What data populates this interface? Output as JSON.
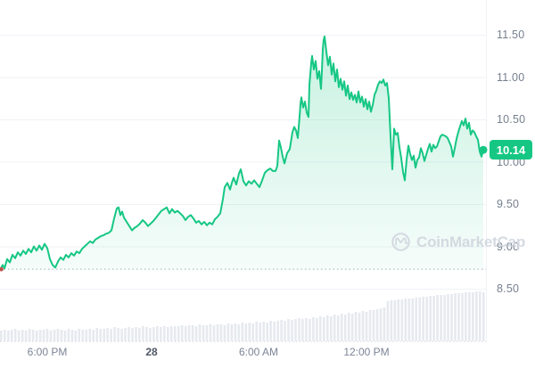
{
  "watermark": {
    "text": "CoinMarketCap"
  },
  "current_price": {
    "label": "10.14"
  },
  "colors": {
    "accent_green": "#16c784",
    "badge_text": "#ffffff",
    "grid": "#f0f2f6",
    "axis_label": "#7c8496",
    "axis_label_emphasis": "#4f5665",
    "volume_bar": "#e6e9ef",
    "watermark": "#d2d7e0",
    "baseline_dotted": "#b9c0cc",
    "start_dot": "#c0544e"
  },
  "chart_data": {
    "type": "line",
    "title": "",
    "legend": [],
    "grid": true,
    "y_axis_side": "right",
    "y_ticks": [
      11.5,
      11.0,
      10.5,
      10.0,
      9.5,
      9.0,
      8.5
    ],
    "y_range": [
      8.3,
      11.75
    ],
    "x_ticks": [
      {
        "label": "6:00 PM",
        "x": 53,
        "emphasis": false
      },
      {
        "label": "28",
        "x": 170,
        "emphasis": true
      },
      {
        "label": "6:00 AM",
        "x": 290,
        "emphasis": false
      },
      {
        "label": "12:00 PM",
        "x": 411,
        "emphasis": false
      }
    ],
    "current_price": 10.14,
    "open_price": 8.73,
    "series": [
      {
        "name": "price",
        "points": [
          [
            0,
            8.72
          ],
          [
            3,
            8.78
          ],
          [
            5,
            8.74
          ],
          [
            8,
            8.85
          ],
          [
            11,
            8.81
          ],
          [
            14,
            8.9
          ],
          [
            17,
            8.86
          ],
          [
            20,
            8.93
          ],
          [
            23,
            8.89
          ],
          [
            26,
            8.95
          ],
          [
            29,
            8.91
          ],
          [
            32,
            8.97
          ],
          [
            35,
            8.93
          ],
          [
            38,
            9.0
          ],
          [
            41,
            8.95
          ],
          [
            44,
            9.01
          ],
          [
            47,
            8.96
          ],
          [
            50,
            9.03
          ],
          [
            53,
            8.98
          ],
          [
            56,
            8.85
          ],
          [
            59,
            8.78
          ],
          [
            62,
            8.75
          ],
          [
            65,
            8.82
          ],
          [
            68,
            8.87
          ],
          [
            71,
            8.84
          ],
          [
            74,
            8.9
          ],
          [
            77,
            8.87
          ],
          [
            80,
            8.92
          ],
          [
            83,
            8.89
          ],
          [
            86,
            8.94
          ],
          [
            89,
            8.92
          ],
          [
            92,
            8.97
          ],
          [
            95,
            9.0
          ],
          [
            98,
            9.03
          ],
          [
            101,
            9.06
          ],
          [
            104,
            9.04
          ],
          [
            107,
            9.08
          ],
          [
            110,
            9.1
          ],
          [
            113,
            9.12
          ],
          [
            116,
            9.13
          ],
          [
            119,
            9.15
          ],
          [
            122,
            9.16
          ],
          [
            125,
            9.19
          ],
          [
            128,
            9.33
          ],
          [
            131,
            9.45
          ],
          [
            133,
            9.46
          ],
          [
            135,
            9.37
          ],
          [
            137,
            9.41
          ],
          [
            139,
            9.34
          ],
          [
            142,
            9.29
          ],
          [
            145,
            9.24
          ],
          [
            148,
            9.19
          ],
          [
            151,
            9.22
          ],
          [
            154,
            9.24
          ],
          [
            157,
            9.27
          ],
          [
            160,
            9.31
          ],
          [
            163,
            9.28
          ],
          [
            166,
            9.24
          ],
          [
            169,
            9.27
          ],
          [
            172,
            9.3
          ],
          [
            175,
            9.34
          ],
          [
            178,
            9.38
          ],
          [
            181,
            9.42
          ],
          [
            184,
            9.44
          ],
          [
            187,
            9.46
          ],
          [
            190,
            9.39
          ],
          [
            193,
            9.44
          ],
          [
            196,
            9.4
          ],
          [
            199,
            9.42
          ],
          [
            202,
            9.39
          ],
          [
            205,
            9.36
          ],
          [
            208,
            9.31
          ],
          [
            211,
            9.35
          ],
          [
            214,
            9.37
          ],
          [
            217,
            9.33
          ],
          [
            220,
            9.28
          ],
          [
            223,
            9.3
          ],
          [
            226,
            9.26
          ],
          [
            229,
            9.29
          ],
          [
            232,
            9.25
          ],
          [
            235,
            9.28
          ],
          [
            238,
            9.26
          ],
          [
            241,
            9.32
          ],
          [
            244,
            9.35
          ],
          [
            247,
            9.39
          ],
          [
            250,
            9.56
          ],
          [
            252,
            9.7
          ],
          [
            255,
            9.75
          ],
          [
            258,
            9.67
          ],
          [
            260,
            9.75
          ],
          [
            262,
            9.81
          ],
          [
            265,
            9.73
          ],
          [
            268,
            9.86
          ],
          [
            270,
            9.91
          ],
          [
            273,
            9.77
          ],
          [
            276,
            9.72
          ],
          [
            279,
            9.77
          ],
          [
            282,
            9.74
          ],
          [
            285,
            9.78
          ],
          [
            288,
            9.74
          ],
          [
            291,
            9.7
          ],
          [
            294,
            9.78
          ],
          [
            297,
            9.87
          ],
          [
            300,
            9.9
          ],
          [
            303,
            9.92
          ],
          [
            306,
            9.89
          ],
          [
            309,
            9.89
          ],
          [
            311,
            9.95
          ],
          [
            313,
            10.25
          ],
          [
            315,
            10.17
          ],
          [
            317,
            10.06
          ],
          [
            319,
            9.98
          ],
          [
            322,
            10.1
          ],
          [
            325,
            10.15
          ],
          [
            328,
            10.35
          ],
          [
            330,
            10.41
          ],
          [
            332,
            10.37
          ],
          [
            334,
            10.28
          ],
          [
            336,
            10.54
          ],
          [
            337,
            10.68
          ],
          [
            338,
            10.76
          ],
          [
            340,
            10.64
          ],
          [
            342,
            10.71
          ],
          [
            344,
            10.58
          ],
          [
            346,
            10.53
          ],
          [
            347,
            10.91
          ],
          [
            349,
            11.16
          ],
          [
            350,
            11.25
          ],
          [
            352,
            11.09
          ],
          [
            354,
            11.19
          ],
          [
            356,
            10.98
          ],
          [
            358,
            11.07
          ],
          [
            360,
            10.86
          ],
          [
            361,
            11.07
          ],
          [
            362,
            11.33
          ],
          [
            363,
            11.44
          ],
          [
            364,
            11.48
          ],
          [
            366,
            11.3
          ],
          [
            368,
            11.14
          ],
          [
            370,
            11.24
          ],
          [
            372,
            11.03
          ],
          [
            374,
            11.16
          ],
          [
            376,
            10.95
          ],
          [
            378,
            11.09
          ],
          [
            380,
            10.88
          ],
          [
            382,
            10.98
          ],
          [
            384,
            10.85
          ],
          [
            386,
            10.95
          ],
          [
            388,
            10.78
          ],
          [
            390,
            10.9
          ],
          [
            392,
            10.74
          ],
          [
            394,
            10.82
          ],
          [
            396,
            10.73
          ],
          [
            398,
            10.79
          ],
          [
            400,
            10.7
          ],
          [
            402,
            10.83
          ],
          [
            404,
            10.7
          ],
          [
            406,
            10.77
          ],
          [
            408,
            10.65
          ],
          [
            410,
            10.74
          ],
          [
            412,
            10.62
          ],
          [
            414,
            10.71
          ],
          [
            416,
            10.59
          ],
          [
            418,
            10.67
          ],
          [
            420,
            10.79
          ],
          [
            422,
            10.84
          ],
          [
            424,
            10.91
          ],
          [
            426,
            10.95
          ],
          [
            428,
            10.93
          ],
          [
            430,
            10.97
          ],
          [
            432,
            10.9
          ],
          [
            434,
            10.93
          ],
          [
            436,
            10.75
          ],
          [
            438,
            10.3
          ],
          [
            440,
            9.91
          ],
          [
            442,
            10.39
          ],
          [
            444,
            10.32
          ],
          [
            446,
            10.34
          ],
          [
            448,
            10.17
          ],
          [
            450,
            10.04
          ],
          [
            452,
            9.88
          ],
          [
            454,
            9.78
          ],
          [
            456,
            10.02
          ],
          [
            458,
            10.19
          ],
          [
            460,
            10.09
          ],
          [
            462,
            10.02
          ],
          [
            464,
            10.07
          ],
          [
            466,
            9.93
          ],
          [
            468,
            10.02
          ],
          [
            470,
            10.05
          ],
          [
            472,
            10.16
          ],
          [
            474,
            10.1
          ],
          [
            476,
            10.01
          ],
          [
            478,
            10.08
          ],
          [
            480,
            10.15
          ],
          [
            482,
            10.21
          ],
          [
            484,
            10.12
          ],
          [
            486,
            10.2
          ],
          [
            488,
            10.16
          ],
          [
            490,
            10.18
          ],
          [
            492,
            10.24
          ],
          [
            494,
            10.3
          ],
          [
            496,
            10.32
          ],
          [
            498,
            10.31
          ],
          [
            500,
            10.3
          ],
          [
            502,
            10.28
          ],
          [
            504,
            10.23
          ],
          [
            506,
            10.18
          ],
          [
            508,
            10.06
          ],
          [
            510,
            10.16
          ],
          [
            512,
            10.27
          ],
          [
            514,
            10.35
          ],
          [
            516,
            10.42
          ],
          [
            518,
            10.48
          ],
          [
            520,
            10.43
          ],
          [
            522,
            10.51
          ],
          [
            524,
            10.39
          ],
          [
            526,
            10.46
          ],
          [
            528,
            10.32
          ],
          [
            530,
            10.37
          ],
          [
            532,
            10.35
          ],
          [
            534,
            10.3
          ],
          [
            536,
            10.26
          ],
          [
            538,
            10.12
          ],
          [
            540,
            10.06
          ],
          [
            542,
            10.14
          ]
        ]
      }
    ],
    "volume": [
      12,
      13,
      12,
      13,
      14,
      12,
      13,
      12,
      14,
      13,
      12,
      13,
      13,
      14,
      12,
      13,
      14,
      13,
      12,
      14,
      13,
      12,
      14,
      13,
      13,
      14,
      13,
      15,
      14,
      14,
      15,
      14,
      16,
      15,
      14,
      15,
      16,
      15,
      16,
      15,
      17,
      16,
      15,
      16,
      17,
      16,
      17,
      16,
      17,
      17,
      17,
      18,
      17,
      18,
      18,
      17,
      19,
      18,
      18,
      19,
      18,
      19,
      19,
      18,
      20,
      19,
      20,
      19,
      21,
      20,
      21,
      20,
      22,
      21,
      22,
      21,
      23,
      22,
      23,
      24,
      23,
      25,
      24,
      25,
      26,
      25,
      26,
      25,
      27,
      26,
      28,
      27,
      29,
      28,
      30,
      29,
      31,
      30,
      32,
      31,
      33,
      32,
      34,
      33,
      35,
      35,
      36,
      37,
      38,
      45,
      46,
      46,
      47,
      47,
      48,
      48,
      48,
      49,
      49,
      50,
      50,
      51,
      51,
      52,
      52,
      52,
      53,
      53,
      54,
      54,
      54,
      55,
      55,
      55,
      56,
      56,
      55
    ]
  }
}
